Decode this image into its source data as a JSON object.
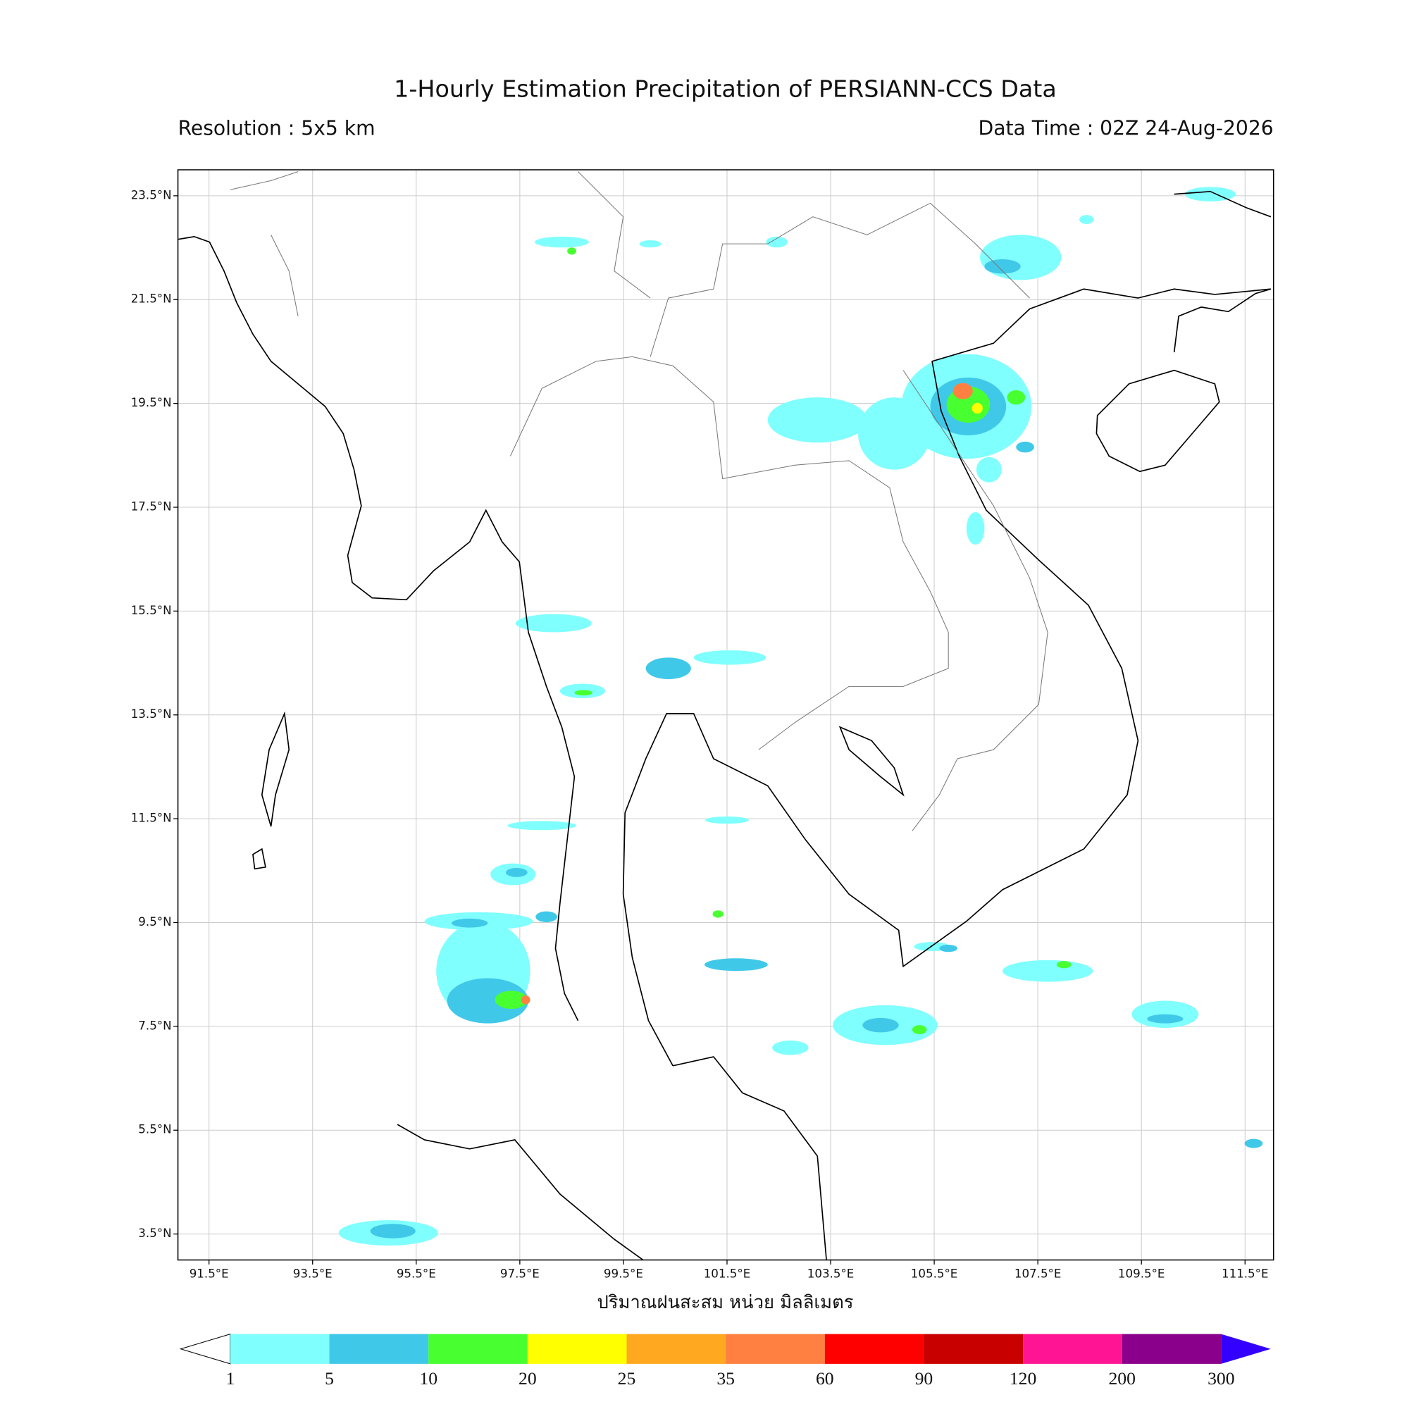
{
  "title": "1-Hourly Estimation Precipitation of PERSIANN-CCS Data",
  "subtitle_left": "Resolution : 5x5 km",
  "subtitle_right": "Data Time : 02Z 24-Aug-2026",
  "map": {
    "xlim": [
      90.9,
      112.05
    ],
    "ylim": [
      3.0,
      24.0
    ],
    "xticks": [
      {
        "value": 91.5,
        "label": "91.5°E"
      },
      {
        "value": 93.5,
        "label": "93.5°E"
      },
      {
        "value": 95.5,
        "label": "95.5°E"
      },
      {
        "value": 97.5,
        "label": "97.5°E"
      },
      {
        "value": 99.5,
        "label": "99.5°E"
      },
      {
        "value": 101.5,
        "label": "101.5°E"
      },
      {
        "value": 103.5,
        "label": "103.5°E"
      },
      {
        "value": 105.5,
        "label": "105.5°E"
      },
      {
        "value": 107.5,
        "label": "107.5°E"
      },
      {
        "value": 109.5,
        "label": "109.5°E"
      },
      {
        "value": 111.5,
        "label": "111.5°E"
      }
    ],
    "yticks": [
      {
        "value": 23.5,
        "label": "23.5°N"
      },
      {
        "value": 21.5,
        "label": "21.5°N"
      },
      {
        "value": 19.5,
        "label": "19.5°N"
      },
      {
        "value": 17.5,
        "label": "17.5°N"
      },
      {
        "value": 15.5,
        "label": "15.5°N"
      },
      {
        "value": 13.5,
        "label": "13.5°N"
      },
      {
        "value": 11.5,
        "label": "11.5°N"
      },
      {
        "value": 9.5,
        "label": "9.5°N"
      },
      {
        "value": 7.5,
        "label": "7.5°N"
      },
      {
        "value": 5.5,
        "label": "5.5°N"
      },
      {
        "value": 3.5,
        "label": "3.5°N"
      }
    ],
    "grid": true,
    "xlabel": "ปริมาณฝนสะสม หน่วย มิลลิเมตร"
  },
  "colorbar": {
    "levels": [
      1,
      5,
      10,
      20,
      25,
      35,
      60,
      90,
      120,
      200,
      300
    ],
    "colors": [
      "#80ffff",
      "#40c8e8",
      "#48ff30",
      "#ffff00",
      "#ffa820",
      "#ff8040",
      "#ff0000",
      "#c80000",
      "#ff1493",
      "#8b008b"
    ],
    "over_color": "#3300ff"
  }
}
